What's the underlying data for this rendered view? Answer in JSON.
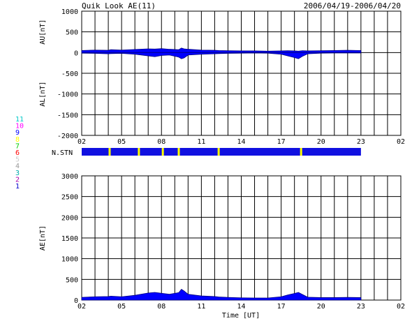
{
  "header": {
    "title": "Quik Look AE(11)",
    "date_range": "2006/04/19-2006/04/20"
  },
  "colors": {
    "index_fill": "#0000ff",
    "index_outline": "#000080",
    "stn_bar": "#1010e0",
    "stn_gap": "#ffff00",
    "grid": "#000000"
  },
  "station_legend": {
    "title": "N.STN",
    "items": [
      {
        "label": "11",
        "color": "#00c8c8"
      },
      {
        "label": "10",
        "color": "#ff00ff"
      },
      {
        "label": "9",
        "color": "#0000ff"
      },
      {
        "label": "8",
        "color": "#ffff00"
      },
      {
        "label": "7",
        "color": "#00cc00"
      },
      {
        "label": "6",
        "color": "#ff0000"
      },
      {
        "label": "5",
        "color": "#cccccc"
      },
      {
        "label": "4",
        "color": "#999999"
      },
      {
        "label": "3",
        "color": "#00aaaa"
      },
      {
        "label": "2",
        "color": "#aa00aa"
      },
      {
        "label": "1",
        "color": "#0000cc"
      }
    ]
  },
  "chart_data": [
    {
      "type": "area",
      "ylabel_top": "AU[nT]",
      "ylabel_bottom": "AL[nT]",
      "ylim": [
        -2000,
        1000
      ],
      "yticks": [
        "1000",
        "500",
        "0",
        "-500",
        "-1000",
        "-1500",
        "-2000"
      ],
      "xlim": [
        2,
        26
      ],
      "xticks": [
        "02",
        "05",
        "08",
        "11",
        "14",
        "17",
        "20",
        "23",
        "02"
      ],
      "grid": true,
      "data_end": 23,
      "series": [
        {
          "role": "AU",
          "x": [
            2,
            3,
            4,
            4.2,
            5,
            6,
            7,
            7.5,
            8,
            8.6,
            9.3,
            9.5,
            9.7,
            10,
            11,
            12,
            12.3,
            13,
            14,
            15,
            16,
            17,
            17.5,
            18,
            18.3,
            18.6,
            19,
            20,
            21,
            22,
            23
          ],
          "y": [
            50,
            60,
            55,
            70,
            60,
            75,
            90,
            85,
            95,
            80,
            70,
            110,
            90,
            80,
            60,
            55,
            50,
            45,
            40,
            40,
            35,
            40,
            45,
            40,
            35,
            45,
            40,
            45,
            50,
            55,
            50
          ]
        },
        {
          "role": "AL",
          "x": [
            2,
            3,
            4,
            4.2,
            5,
            6,
            7,
            7.5,
            8,
            8.6,
            9.3,
            9.5,
            9.7,
            10,
            11,
            12,
            12.3,
            13,
            14,
            15,
            16,
            17,
            17.5,
            18,
            18.3,
            18.6,
            19,
            20,
            21,
            22,
            23
          ],
          "y": [
            -15,
            -20,
            -30,
            -25,
            -20,
            -40,
            -80,
            -100,
            -70,
            -60,
            -110,
            -150,
            -130,
            -60,
            -40,
            -30,
            -25,
            -20,
            -15,
            -10,
            -15,
            -40,
            -80,
            -120,
            -150,
            -90,
            -30,
            -15,
            -10,
            -10,
            -10
          ]
        }
      ]
    },
    {
      "type": "bar",
      "title": "N.STN",
      "x_range": [
        2,
        23
      ],
      "gaps_ut": [
        4.1,
        6.3,
        8.1,
        9.3,
        12.3,
        18.5
      ]
    },
    {
      "type": "area",
      "ylabel": "AE[nT]",
      "ylim": [
        0,
        3000
      ],
      "yticks": [
        "3000",
        "2500",
        "2000",
        "1500",
        "1000",
        "500",
        "0"
      ],
      "xlim": [
        2,
        26
      ],
      "xticks": [
        "02",
        "05",
        "08",
        "11",
        "14",
        "17",
        "20",
        "23",
        "02"
      ],
      "xlabel": "Time [UT]",
      "grid": true,
      "data_end": 23,
      "series": [
        {
          "role": "AE",
          "x": [
            2,
            3,
            4,
            4.2,
            5,
            6,
            7,
            7.5,
            8,
            8.6,
            9.3,
            9.5,
            9.7,
            10,
            11,
            12,
            12.3,
            13,
            14,
            15,
            16,
            17,
            17.5,
            18,
            18.3,
            18.6,
            19,
            20,
            21,
            22,
            23
          ],
          "y": [
            65,
            80,
            85,
            95,
            80,
            115,
            170,
            185,
            165,
            140,
            180,
            260,
            220,
            140,
            100,
            85,
            75,
            65,
            55,
            50,
            50,
            80,
            125,
            160,
            185,
            135,
            70,
            60,
            60,
            65,
            60
          ]
        }
      ]
    }
  ]
}
